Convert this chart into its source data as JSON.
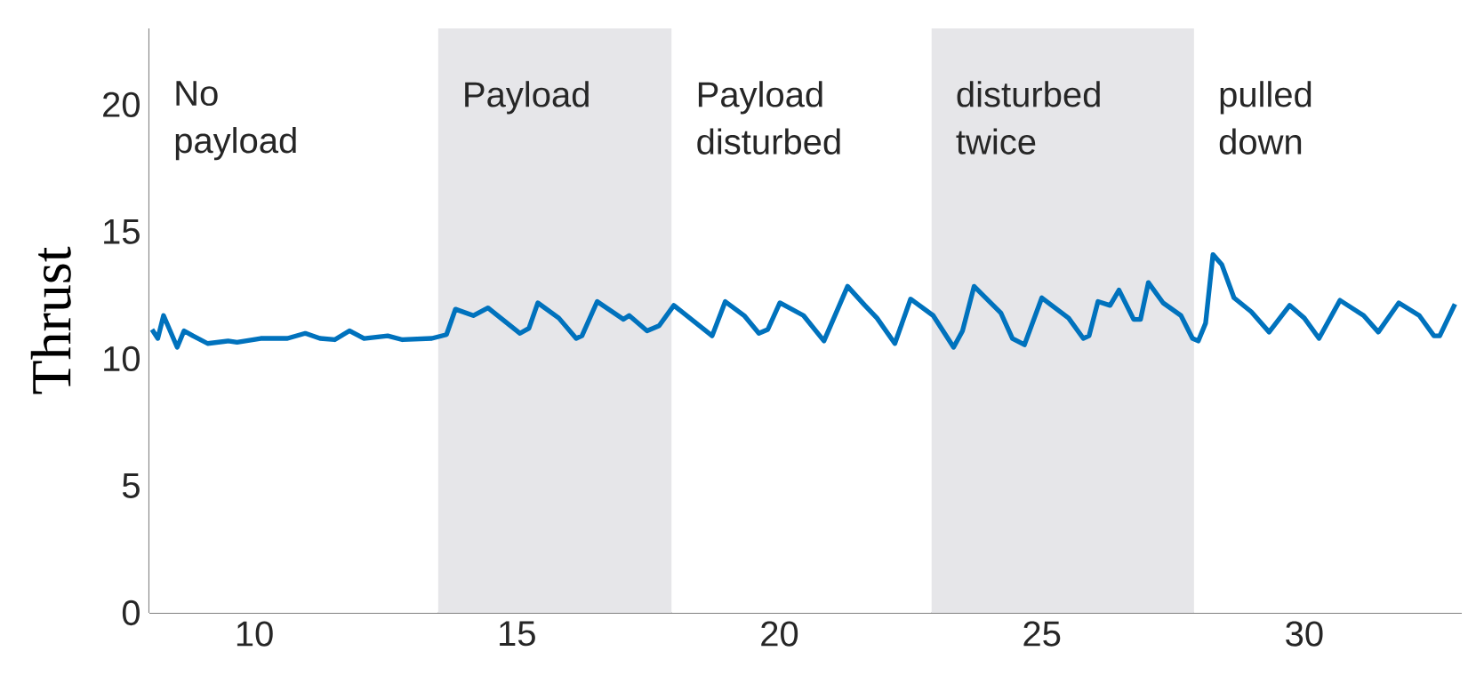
{
  "chart_data": {
    "type": "line",
    "ylabel": "Thrust",
    "xlim": [
      8,
      33
    ],
    "ylim": [
      0,
      23
    ],
    "xticks": [
      10,
      15,
      20,
      25,
      30
    ],
    "yticks": [
      0,
      5,
      10,
      15,
      20
    ],
    "grid": false,
    "marker": "none",
    "line_style": "solid",
    "bands": [
      {
        "axis": "x",
        "from": 8,
        "to": 13.5,
        "color": "#ffffff",
        "label": "No payload"
      },
      {
        "axis": "x",
        "from": 13.5,
        "to": 17.95,
        "color": "#e6e6e9",
        "label": "Payload"
      },
      {
        "axis": "x",
        "from": 17.95,
        "to": 22.9,
        "color": "#ffffff",
        "label": "Payload disturbed"
      },
      {
        "axis": "x",
        "from": 22.9,
        "to": 27.9,
        "color": "#e6e6e9",
        "label": "disturbed twice"
      },
      {
        "axis": "x",
        "from": 27.9,
        "to": 33,
        "color": "#ffffff",
        "label": "pulled down"
      }
    ],
    "series": [
      {
        "color": "#0072bd",
        "x": [
          8.05,
          8.16,
          8.27,
          8.53,
          8.66,
          8.83,
          9.11,
          9.5,
          9.67,
          10.12,
          10.63,
          10.97,
          11.25,
          11.53,
          11.81,
          12.09,
          12.54,
          12.82,
          13.38,
          13.66,
          13.83,
          14.17,
          14.45,
          15.06,
          15.23,
          15.4,
          15.8,
          16.13,
          16.24,
          16.53,
          17.03,
          17.14,
          17.48,
          17.71,
          17.99,
          18.72,
          18.97,
          19.33,
          19.61,
          19.78,
          20.01,
          20.46,
          20.85,
          21.3,
          21.63,
          21.86,
          22.2,
          22.5,
          22.93,
          23.32,
          23.49,
          23.71,
          24.22,
          24.44,
          24.67,
          25.0,
          25.51,
          25.79,
          25.9,
          26.07,
          26.3,
          26.47,
          26.75,
          26.88,
          27.03,
          27.31,
          27.65,
          27.87,
          27.98,
          28.12,
          28.26,
          28.43,
          28.66,
          28.99,
          29.33,
          29.72,
          30.0,
          30.28,
          30.68,
          31.13,
          31.41,
          31.8,
          32.19,
          32.47,
          32.58,
          32.87
        ],
        "values": [
          11.15,
          10.8,
          11.7,
          10.45,
          11.1,
          10.9,
          10.6,
          10.7,
          10.65,
          10.8,
          10.8,
          11.0,
          10.8,
          10.75,
          11.1,
          10.8,
          10.9,
          10.75,
          10.8,
          10.95,
          11.95,
          11.7,
          12.0,
          11.0,
          11.2,
          12.2,
          11.6,
          10.8,
          10.9,
          12.25,
          11.55,
          11.7,
          11.1,
          11.3,
          12.1,
          10.9,
          12.25,
          11.7,
          11.0,
          11.15,
          12.2,
          11.7,
          10.7,
          12.85,
          12.1,
          11.6,
          10.6,
          12.35,
          11.7,
          10.45,
          11.1,
          12.85,
          11.8,
          10.8,
          10.55,
          12.4,
          11.6,
          10.8,
          10.9,
          12.25,
          12.1,
          12.7,
          11.55,
          11.55,
          13.0,
          12.2,
          11.7,
          10.8,
          10.7,
          11.4,
          14.1,
          13.7,
          12.4,
          11.85,
          11.05,
          12.1,
          11.6,
          10.8,
          12.3,
          11.7,
          11.05,
          12.2,
          11.7,
          10.9,
          10.9,
          12.15
        ]
      }
    ]
  }
}
